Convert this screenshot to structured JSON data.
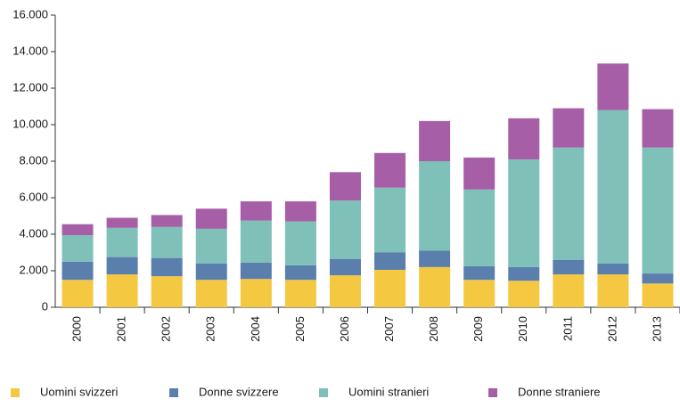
{
  "chart_data": {
    "type": "stacked_bar",
    "categories": [
      "2000",
      "2001",
      "2002",
      "2003",
      "2004",
      "2005",
      "2006",
      "2007",
      "2008",
      "2009",
      "2010",
      "2011",
      "2012",
      "2013"
    ],
    "series": [
      {
        "name": "Uomini svizzeri",
        "color": "#f5c842",
        "values": [
          1500,
          1800,
          1700,
          1500,
          1550,
          1500,
          1750,
          2050,
          2200,
          1500,
          1450,
          1800,
          1800,
          1300
        ]
      },
      {
        "name": "Donne svizzere",
        "color": "#5b7fad",
        "values": [
          1000,
          950,
          1000,
          900,
          900,
          800,
          900,
          950,
          900,
          750,
          750,
          800,
          600,
          550
        ]
      },
      {
        "name": "Uomini stranieri",
        "color": "#7fc0b8",
        "values": [
          1450,
          1600,
          1700,
          1900,
          2300,
          2400,
          3200,
          3550,
          4900,
          4200,
          5900,
          6150,
          8400,
          6900
        ]
      },
      {
        "name": "Donne straniere",
        "color": "#a65ea7",
        "values": [
          600,
          550,
          650,
          1100,
          1050,
          1100,
          1550,
          1900,
          2200,
          1750,
          2250,
          2150,
          2550,
          2100
        ]
      }
    ],
    "ylim": [
      0,
      16000
    ],
    "yticks": [
      0,
      {
        "value": 2000,
        "label": "2.000"
      },
      {
        "value": 4000,
        "label": "4.000"
      },
      {
        "value": 6000,
        "label": "6.000"
      },
      {
        "value": 8000,
        "label": "8.000"
      },
      {
        "value": 10000,
        "label": "10.000"
      },
      {
        "value": 12000,
        "label": "12.000"
      },
      {
        "value": 14000,
        "label": "14.000"
      },
      {
        "value": 16000,
        "label": "16.000"
      }
    ],
    "legend": "bottom"
  }
}
